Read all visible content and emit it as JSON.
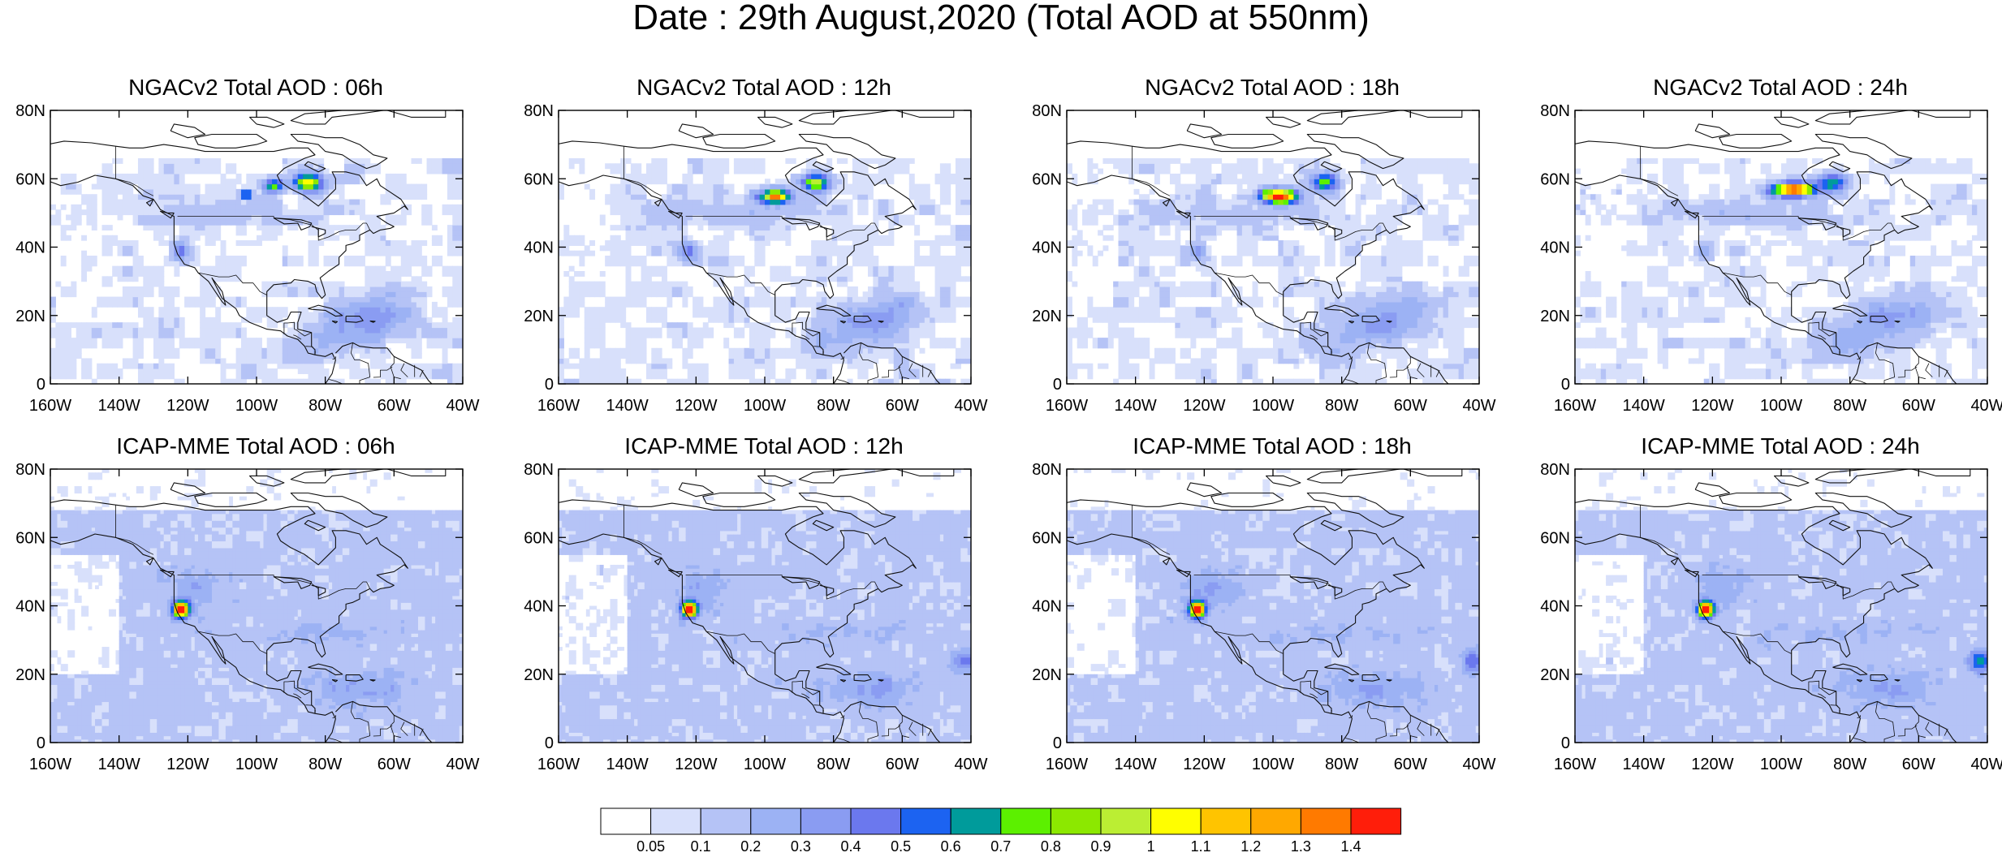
{
  "title": "Date : 29th August,2020 (Total AOD at 550nm)",
  "axes": {
    "lat_ticks": [
      "80N",
      "60N",
      "40N",
      "20N",
      "0"
    ],
    "lon_ticks": [
      "160W",
      "140W",
      "120W",
      "100W",
      "80W",
      "60W",
      "40W"
    ],
    "lon_range": [
      -160,
      -40
    ],
    "lat_range": [
      0,
      80
    ]
  },
  "panels": [
    {
      "title": "NGACv2 Total AOD : 06h",
      "model": "NGACv2",
      "hour": "06h"
    },
    {
      "title": "NGACv2 Total AOD : 12h",
      "model": "NGACv2",
      "hour": "12h"
    },
    {
      "title": "NGACv2 Total AOD : 18h",
      "model": "NGACv2",
      "hour": "18h"
    },
    {
      "title": "NGACv2 Total AOD : 24h",
      "model": "NGACv2",
      "hour": "24h"
    },
    {
      "title": "ICAP-MME Total AOD : 06h",
      "model": "ICAP-MME",
      "hour": "06h"
    },
    {
      "title": "ICAP-MME Total AOD : 12h",
      "model": "ICAP-MME",
      "hour": "12h"
    },
    {
      "title": "ICAP-MME Total AOD : 18h",
      "model": "ICAP-MME",
      "hour": "18h"
    },
    {
      "title": "ICAP-MME Total AOD : 24h",
      "model": "ICAP-MME",
      "hour": "24h"
    }
  ],
  "colorbar": {
    "labels": [
      "0.05",
      "0.1",
      "0.2",
      "0.3",
      "0.4",
      "0.5",
      "0.6",
      "0.7",
      "0.8",
      "0.9",
      "1",
      "1.1",
      "1.2",
      "1.3",
      "1.4"
    ],
    "colors": [
      "#ffffff",
      "#d8e0fb",
      "#b5c3f6",
      "#9cb2f4",
      "#8a9cf2",
      "#6b78ee",
      "#1c63f1",
      "#009b9b",
      "#5cf000",
      "#8ce800",
      "#bbee33",
      "#fffe00",
      "#ffc400",
      "#ffa800",
      "#ff7a00",
      "#ff1e0a"
    ]
  },
  "features": {
    "smoke_colors_ngac": [
      "#ff1e0a",
      "#fffe00",
      "#5cf000",
      "#009b9b"
    ],
    "smoke_colors_icap": [
      "#ff1e0a",
      "#ffc400",
      "#5cf000"
    ]
  }
}
